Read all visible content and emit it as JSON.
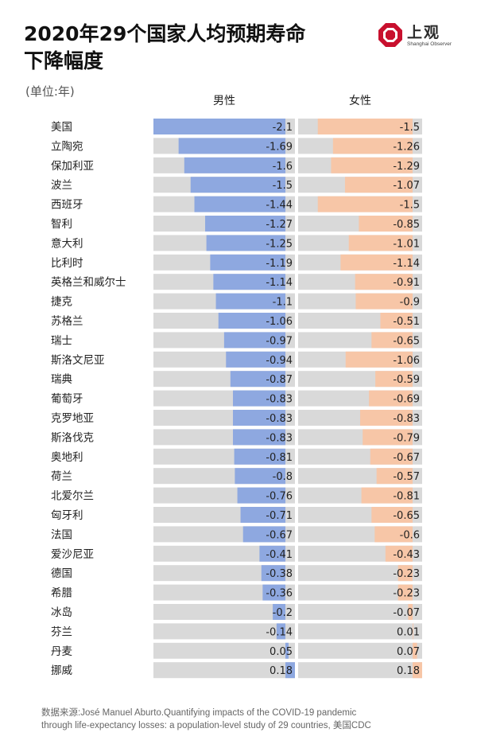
{
  "title_line1": "2020年29个国家人均预期寿命",
  "title_line2": "下降幅度",
  "unit_label": "(单位:年)",
  "logo": {
    "name": "上观",
    "sub": "Shanghai Observer"
  },
  "source_line1": "数据来源:José Manuel Aburto.Quantifying impacts of the COVID-19 pandemic",
  "source_line2": "through life-expectancy losses: a population-level study of 29 countries, 美国CDC",
  "colors": {
    "male": "#8ea8e0",
    "female": "#f7c6a7",
    "track": "#d9d9d9"
  },
  "chart_data": {
    "type": "bar",
    "orientation": "horizontal",
    "categories": [
      "美国",
      "立陶宛",
      "保加利亚",
      "波兰",
      "西班牙",
      "智利",
      "意大利",
      "比利时",
      "英格兰和威尔士",
      "捷克",
      "苏格兰",
      "瑞士",
      "斯洛文尼亚",
      "瑞典",
      "葡萄牙",
      "克罗地亚",
      "斯洛伐克",
      "奥地利",
      "荷兰",
      "北爱尔兰",
      "匈牙利",
      "法国",
      "爱沙尼亚",
      "德国",
      "希腊",
      "冰岛",
      "芬兰",
      "丹麦",
      "挪威"
    ],
    "series": [
      {
        "name": "男性",
        "values": [
          -2.1,
          -1.69,
          -1.6,
          -1.5,
          -1.44,
          -1.27,
          -1.25,
          -1.19,
          -1.14,
          -1.1,
          -1.06,
          -0.97,
          -0.94,
          -0.87,
          -0.83,
          -0.83,
          -0.83,
          -0.81,
          -0.8,
          -0.76,
          -0.71,
          -0.67,
          -0.41,
          -0.38,
          -0.36,
          -0.2,
          -0.14,
          0.05,
          0.18
        ]
      },
      {
        "name": "女性",
        "values": [
          -1.5,
          -1.26,
          -1.29,
          -1.07,
          -1.5,
          -0.85,
          -1.01,
          -1.14,
          -0.91,
          -0.9,
          -0.51,
          -0.65,
          -1.06,
          -0.59,
          -0.69,
          -0.83,
          -0.79,
          -0.67,
          -0.57,
          -0.81,
          -0.65,
          -0.6,
          -0.43,
          -0.23,
          -0.23,
          -0.07,
          0.01,
          0.07,
          0.18
        ]
      }
    ],
    "xlim": [
      -2.1,
      0.1
    ]
  }
}
